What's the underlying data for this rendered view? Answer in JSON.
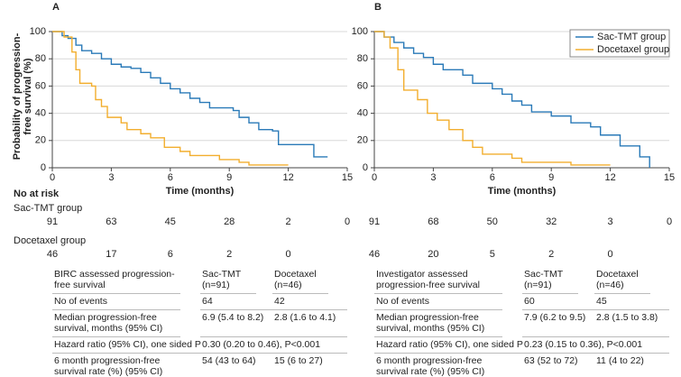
{
  "chart_data": [
    {
      "type": "step",
      "title": "A",
      "y_label": "Probability of progression-free survival (%)",
      "x_label": "Time (months)",
      "xlim": [
        0,
        15
      ],
      "xticks": [
        0,
        3,
        6,
        9,
        12,
        15
      ],
      "ylim": [
        0,
        100
      ],
      "yticks": [
        0,
        20,
        40,
        60,
        80,
        100
      ],
      "grid": true,
      "legend": "none",
      "series": [
        {
          "name": "Sac-TMT group",
          "color": "#2a7ab8",
          "x": [
            0,
            0.5,
            0.8,
            1.2,
            1.5,
            2,
            2.5,
            3,
            3.5,
            4,
            4.5,
            5,
            5.5,
            6,
            6.5,
            7,
            7.5,
            8,
            9.2,
            9.5,
            10,
            10.5,
            11.2,
            11.5,
            13,
            13.3,
            14
          ],
          "values": [
            100,
            97,
            95,
            90,
            86,
            84,
            80,
            76,
            74,
            73,
            70,
            66,
            62,
            58,
            55,
            51,
            48,
            44,
            42,
            37,
            33,
            28,
            27,
            17,
            17,
            8,
            8
          ]
        },
        {
          "name": "Docetaxel group",
          "color": "#f2ae2e",
          "x": [
            0,
            0.6,
            1,
            1.2,
            1.4,
            2,
            2.2,
            2.5,
            2.8,
            3.5,
            3.8,
            4.5,
            5,
            5.7,
            6.5,
            7,
            8.5,
            9.5,
            10,
            12
          ],
          "values": [
            100,
            96,
            85,
            72,
            62,
            60,
            50,
            45,
            37,
            33,
            28,
            25,
            22,
            15,
            12,
            9,
            6,
            4,
            2,
            2
          ]
        }
      ],
      "risk_title": "No at risk",
      "at_risk": [
        [
          91,
          63,
          45,
          28,
          2,
          0
        ],
        [
          46,
          17,
          6,
          2,
          0
        ]
      ]
    },
    {
      "type": "step",
      "title": "B",
      "x_label": "Time (months)",
      "xlim": [
        0,
        15
      ],
      "xticks": [
        0,
        3,
        6,
        9,
        12,
        15
      ],
      "ylim": [
        0,
        100
      ],
      "yticks": [
        0,
        20,
        40,
        60,
        80,
        100
      ],
      "grid": true,
      "legend": "upper right",
      "series": [
        {
          "name": "Sac-TMT group",
          "color": "#2a7ab8",
          "x": [
            0,
            0.5,
            1,
            1.5,
            2,
            2.5,
            3,
            3.5,
            4.5,
            5,
            6,
            6.5,
            7,
            7.5,
            8,
            9,
            10,
            11,
            11.5,
            12.5,
            13.5,
            14
          ],
          "values": [
            100,
            96,
            92,
            88,
            84,
            81,
            76,
            72,
            68,
            62,
            58,
            54,
            49,
            46,
            41,
            38,
            33,
            30,
            24,
            16,
            8,
            0
          ]
        },
        {
          "name": "Docetaxel group",
          "color": "#f2ae2e",
          "x": [
            0,
            0.5,
            0.8,
            1.2,
            1.5,
            2.2,
            2.7,
            3.2,
            3.8,
            4.5,
            5,
            5.5,
            7,
            7.5,
            10,
            12
          ],
          "values": [
            100,
            96,
            88,
            72,
            57,
            50,
            40,
            35,
            28,
            20,
            15,
            10,
            7,
            4,
            2,
            2
          ]
        }
      ],
      "at_risk": [
        [
          91,
          68,
          50,
          32,
          3,
          0
        ],
        [
          46,
          20,
          5,
          2,
          0
        ]
      ]
    }
  ],
  "tables": [
    {
      "header": [
        "BIRC assessed progression-free survival",
        "Sac-TMT (n=91)",
        "Docetaxel (n=46)"
      ],
      "rows": [
        [
          "No of events",
          "64",
          "42"
        ],
        [
          "Median progression-free survival, months (95% CI)",
          "6.9 (5.4 to 8.2)",
          "2.8 (1.6 to 4.1)"
        ],
        [
          "Hazard ratio (95% CI), one sided P",
          "0.30 (0.20 to 0.46), P<0.001"
        ],
        [
          "6 month progression-free survival rate (%) (95% CI)",
          "54 (43 to 64)",
          "15 (6 to 27)"
        ]
      ]
    },
    {
      "header": [
        "Investigator assessed progression-free survival",
        "Sac-TMT (n=91)",
        "Docetaxel (n=46)"
      ],
      "rows": [
        [
          "No of events",
          "60",
          "45"
        ],
        [
          "Median progression-free survival, months (95% CI)",
          "7.9 (6.2 to 9.5)",
          "2.8 (1.5 to 3.8)"
        ],
        [
          "Hazard ratio (95% CI), one sided P",
          "0.23 (0.15 to 0.36), P<0.001"
        ],
        [
          "6 month progression-free survival rate (%) (95% CI)",
          "63 (52 to 72)",
          "11 (4 to 22)"
        ]
      ]
    }
  ]
}
